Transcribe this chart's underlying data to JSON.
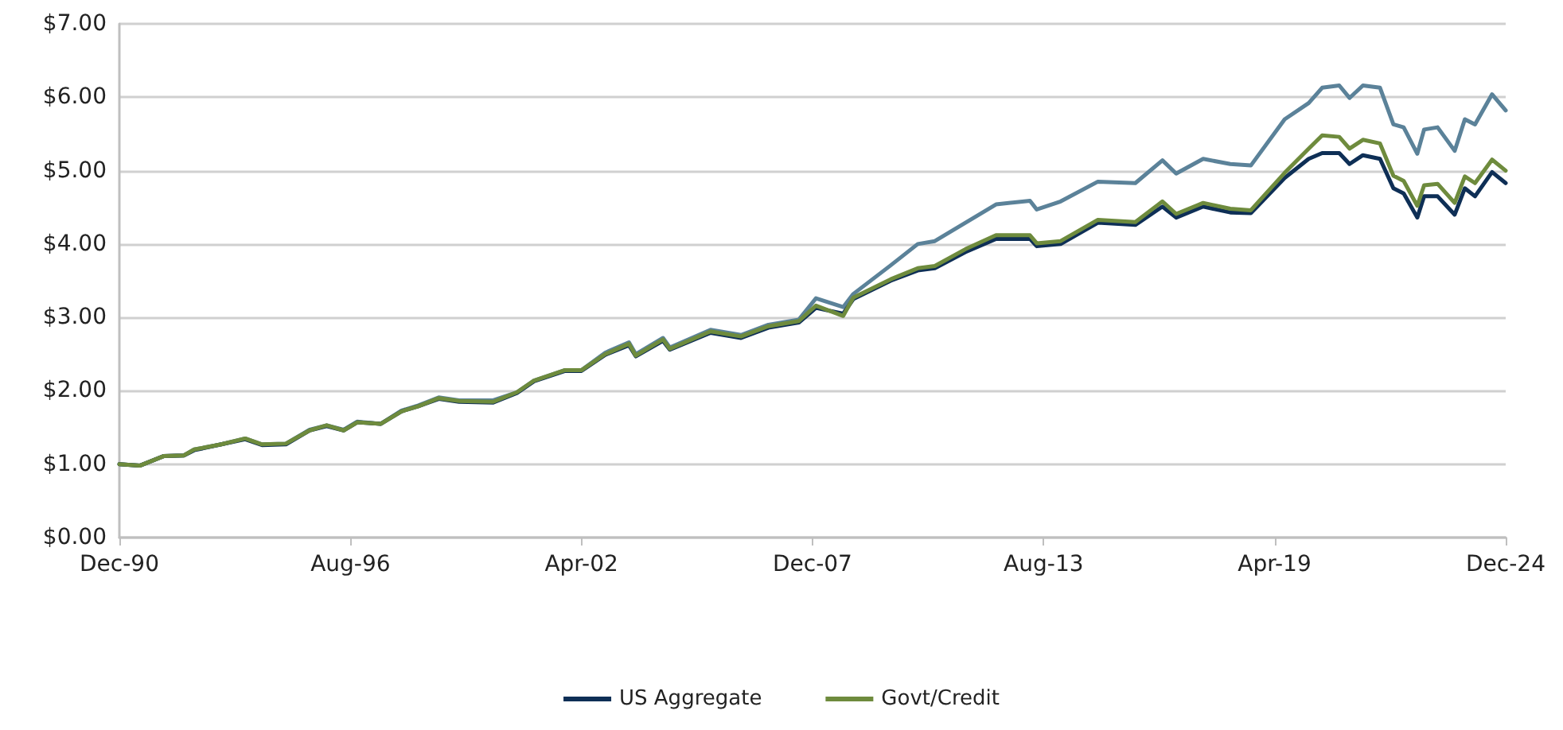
{
  "chart_data": {
    "type": "line",
    "marker": "none",
    "line_style": "solid",
    "grid": "y",
    "legend": "bottom",
    "x": [
      "1990-12",
      "1991-06",
      "1992-01",
      "1992-07",
      "1992-10",
      "1993-06",
      "1994-01",
      "1994-06",
      "1995-01",
      "1995-08",
      "1996-01",
      "1996-06",
      "1996-10",
      "1997-05",
      "1997-11",
      "1998-04",
      "1998-10",
      "1999-04",
      "2000-02",
      "2000-09",
      "2001-02",
      "2001-11",
      "2002-04",
      "2002-11",
      "2003-06",
      "2003-08",
      "2004-04",
      "2004-06",
      "2005-06",
      "2006-03",
      "2006-11",
      "2007-08",
      "2008-01",
      "2008-09",
      "2008-12",
      "2009-11",
      "2010-07",
      "2010-12",
      "2011-09",
      "2012-06",
      "2013-04",
      "2013-06",
      "2014-01",
      "2014-12",
      "2015-11",
      "2016-07",
      "2016-11",
      "2017-07",
      "2018-03",
      "2018-09",
      "2019-07",
      "2020-02",
      "2020-06",
      "2020-11",
      "2021-02",
      "2021-06",
      "2021-11",
      "2022-03",
      "2022-06",
      "2022-10",
      "2022-12",
      "2023-04",
      "2023-09",
      "2023-12",
      "2024-03",
      "2024-08",
      "2024-12"
    ],
    "series": [
      {
        "color": "#5b8299",
        "values": [
          1.0,
          0.98,
          1.11,
          1.12,
          1.2,
          1.27,
          1.35,
          1.27,
          1.28,
          1.47,
          1.53,
          1.47,
          1.58,
          1.55,
          1.73,
          1.8,
          1.91,
          1.87,
          1.87,
          1.98,
          2.14,
          2.28,
          2.28,
          2.52,
          2.66,
          2.5,
          2.72,
          2.59,
          2.83,
          2.76,
          2.9,
          2.97,
          3.26,
          3.14,
          3.32,
          3.71,
          4.0,
          4.04,
          4.29,
          4.54,
          4.59,
          4.47,
          4.58,
          4.85,
          4.83,
          5.14,
          4.96,
          5.16,
          5.09,
          5.07,
          5.7,
          5.92,
          6.13,
          6.16,
          5.99,
          6.16,
          6.13,
          5.63,
          5.59,
          5.23,
          5.56,
          5.59,
          5.27,
          5.7,
          5.63,
          6.04,
          5.82
        ]
      },
      {
        "name": "US Aggregate",
        "color": "#0e2f56",
        "values": [
          1.0,
          0.98,
          1.11,
          1.12,
          1.19,
          1.27,
          1.34,
          1.26,
          1.27,
          1.46,
          1.52,
          1.46,
          1.57,
          1.55,
          1.72,
          1.79,
          1.89,
          1.85,
          1.84,
          1.97,
          2.13,
          2.27,
          2.27,
          2.49,
          2.62,
          2.47,
          2.68,
          2.56,
          2.79,
          2.72,
          2.86,
          2.93,
          3.13,
          3.05,
          3.25,
          3.5,
          3.64,
          3.67,
          3.89,
          4.07,
          4.07,
          3.97,
          4.0,
          4.29,
          4.26,
          4.51,
          4.36,
          4.51,
          4.43,
          4.42,
          4.9,
          5.16,
          5.24,
          5.24,
          5.09,
          5.21,
          5.16,
          4.76,
          4.69,
          4.36,
          4.65,
          4.65,
          4.4,
          4.76,
          4.65,
          4.98,
          4.83
        ]
      },
      {
        "name": "Govt/Credit",
        "color": "#6e8b3d",
        "values": [
          1.0,
          0.98,
          1.11,
          1.12,
          1.2,
          1.27,
          1.35,
          1.27,
          1.28,
          1.46,
          1.53,
          1.46,
          1.57,
          1.55,
          1.72,
          1.79,
          1.9,
          1.86,
          1.85,
          1.98,
          2.14,
          2.28,
          2.28,
          2.5,
          2.64,
          2.48,
          2.7,
          2.57,
          2.81,
          2.74,
          2.88,
          2.95,
          3.16,
          3.02,
          3.27,
          3.52,
          3.67,
          3.7,
          3.93,
          4.12,
          4.12,
          4.01,
          4.04,
          4.33,
          4.3,
          4.58,
          4.41,
          4.56,
          4.48,
          4.46,
          4.97,
          5.3,
          5.48,
          5.46,
          5.3,
          5.42,
          5.37,
          4.93,
          4.86,
          4.52,
          4.8,
          4.82,
          4.56,
          4.92,
          4.83,
          5.15,
          5.0
        ]
      }
    ],
    "xlim": [
      "1990-12",
      "2024-12"
    ],
    "xticks": [
      {
        "value": "1990-12",
        "label": "Dec-90"
      },
      {
        "value": "1996-08",
        "label": "Aug-96"
      },
      {
        "value": "2002-04",
        "label": "Apr-02"
      },
      {
        "value": "2007-12",
        "label": "Dec-07"
      },
      {
        "value": "2013-08",
        "label": "Aug-13"
      },
      {
        "value": "2019-04",
        "label": "Apr-19"
      },
      {
        "value": "2024-12",
        "label": "Dec-24"
      }
    ],
    "ylim": [
      0,
      7
    ],
    "yticks": [
      {
        "value": 0,
        "label": "$0.00"
      },
      {
        "value": 1,
        "label": "$1.00"
      },
      {
        "value": 2,
        "label": "$2.00"
      },
      {
        "value": 3,
        "label": "$3.00"
      },
      {
        "value": 4,
        "label": "$4.00"
      },
      {
        "value": 5,
        "label": "$5.00"
      },
      {
        "value": 6,
        "label": "$6.00"
      },
      {
        "value": 7,
        "label": "$7.00"
      }
    ]
  }
}
